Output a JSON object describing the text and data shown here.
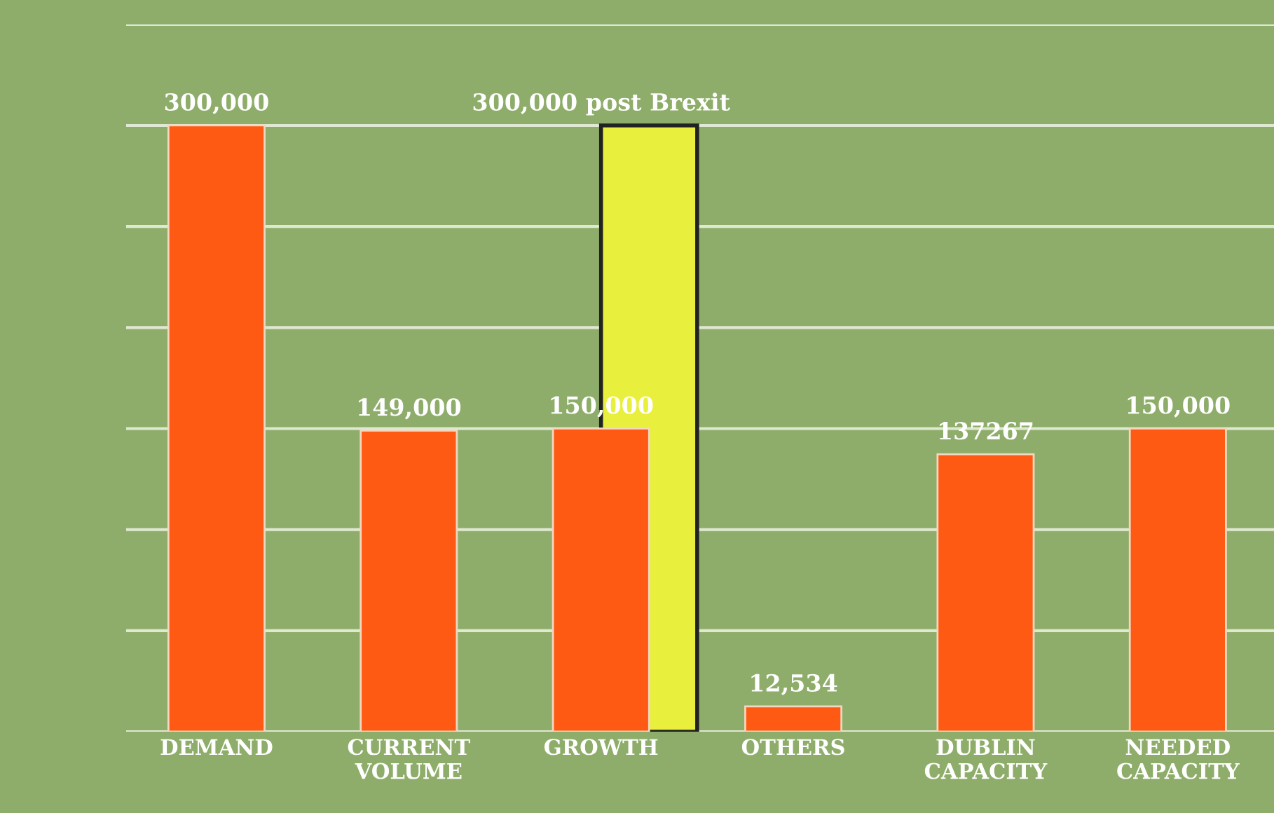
{
  "chart_data": {
    "type": "bar",
    "categories": [
      "DEMAND",
      "CURRENT VOLUME",
      "GROWTH",
      "OTHERS",
      "DUBLIN CAPACITY",
      "NEEDED CAPACITY"
    ],
    "series": [
      {
        "color": "#e8ef3c",
        "values": [
          null,
          null,
          300000,
          null,
          null,
          null
        ],
        "value_labels": [
          null,
          null,
          "300,000 post Brexit",
          null,
          null,
          null
        ]
      },
      {
        "color": "#ff5a14",
        "values": [
          300000,
          149000,
          150000,
          12534,
          137267,
          150000
        ],
        "value_labels": [
          "300,000",
          "149,000",
          "150,000",
          "12,534",
          "137267",
          "150,000"
        ]
      }
    ],
    "ylim": [
      0,
      350000
    ],
    "yticks": [
      {
        "value": 0,
        "label": null
      },
      {
        "value": 50000,
        "label": null
      },
      {
        "value": 100000,
        "label": null
      },
      {
        "value": 150000,
        "label": null
      },
      {
        "value": 200000,
        "label": null
      },
      {
        "value": 250000,
        "label": null
      },
      {
        "value": 300000,
        "label": null
      },
      {
        "value": 350000,
        "label": null
      }
    ],
    "grid": "y",
    "legend": false
  }
}
